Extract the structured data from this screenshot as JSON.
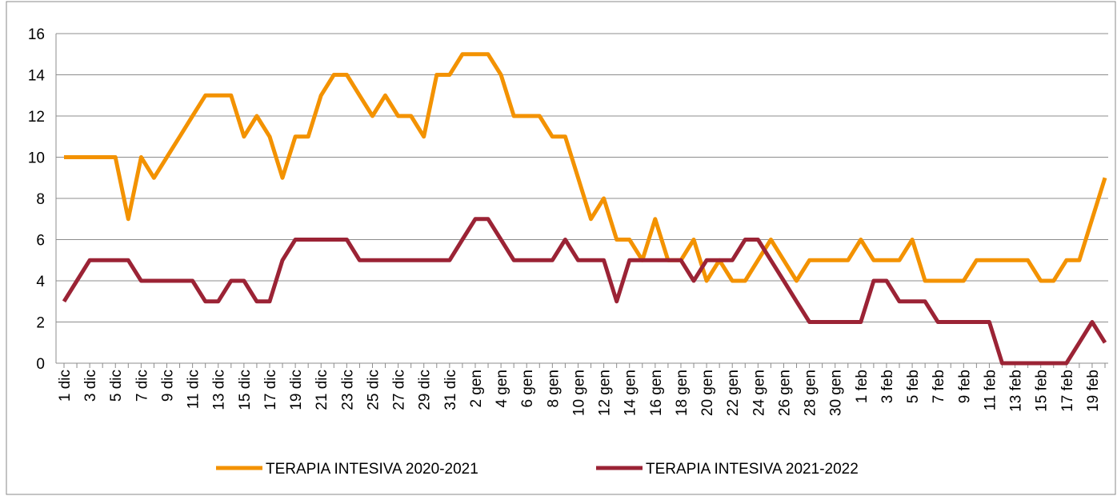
{
  "chart_data": {
    "type": "line",
    "categories": [
      "1 dic",
      null,
      "3 dic",
      null,
      "5 dic",
      null,
      "7 dic",
      null,
      "9 dic",
      null,
      "11 dic",
      null,
      "13 dic",
      null,
      "15 dic",
      null,
      "17 dic",
      null,
      "19 dic",
      null,
      "21 dic",
      null,
      "23 dic",
      null,
      "25 dic",
      null,
      "27 dic",
      null,
      "29 dic",
      null,
      "31 dic",
      null,
      "2 gen",
      null,
      "4 gen",
      null,
      "6 gen",
      null,
      "8 gen",
      null,
      "10 gen",
      null,
      "12 gen",
      null,
      "14 gen",
      null,
      "16 gen",
      null,
      "18 gen",
      null,
      "20 gen",
      null,
      "22 gen",
      null,
      "24 gen",
      null,
      "26 gen",
      null,
      "28 gen",
      null,
      "30 gen",
      null,
      "1 feb",
      null,
      "3 feb",
      null,
      "5 feb",
      null,
      "7 feb",
      null,
      "9 feb",
      null,
      "11 feb",
      null,
      "13 feb",
      null,
      "15 feb",
      null,
      "17 feb",
      null,
      "19 feb",
      null
    ],
    "series": [
      {
        "name": "TERAPIA INTESIVA 2020-2021",
        "color": "#f39200",
        "values": [
          10,
          10,
          10,
          10,
          10,
          7,
          10,
          9,
          10,
          11,
          12,
          13,
          13,
          13,
          11,
          12,
          11,
          9,
          11,
          11,
          13,
          14,
          14,
          13,
          12,
          13,
          12,
          12,
          11,
          14,
          14,
          15,
          15,
          15,
          14,
          12,
          12,
          12,
          11,
          11,
          9,
          7,
          8,
          6,
          6,
          5,
          7,
          5,
          5,
          6,
          4,
          5,
          4,
          4,
          5,
          6,
          5,
          4,
          5,
          5,
          5,
          5,
          6,
          5,
          5,
          5,
          6,
          4,
          4,
          4,
          4,
          5,
          5,
          5,
          5,
          5,
          4,
          4,
          5,
          5,
          7,
          9
        ]
      },
      {
        "name": "TERAPIA INTESIVA 2021-2022",
        "color": "#9b2335",
        "values": [
          3,
          4,
          5,
          5,
          5,
          5,
          4,
          4,
          4,
          4,
          4,
          3,
          3,
          4,
          4,
          3,
          3,
          5,
          6,
          6,
          6,
          6,
          6,
          5,
          5,
          5,
          5,
          5,
          5,
          5,
          5,
          6,
          7,
          7,
          6,
          5,
          5,
          5,
          5,
          6,
          5,
          5,
          5,
          3,
          5,
          5,
          5,
          5,
          5,
          4,
          5,
          5,
          5,
          6,
          6,
          5,
          4,
          3,
          2,
          2,
          2,
          2,
          2,
          4,
          4,
          3,
          3,
          3,
          2,
          2,
          2,
          2,
          2,
          0,
          0,
          0,
          0,
          0,
          0,
          1,
          2,
          1
        ]
      }
    ],
    "ylim": [
      0,
      16
    ],
    "yticks": [
      0,
      2,
      4,
      6,
      8,
      10,
      12,
      14,
      16
    ],
    "grid": true,
    "legend": "bottom"
  }
}
